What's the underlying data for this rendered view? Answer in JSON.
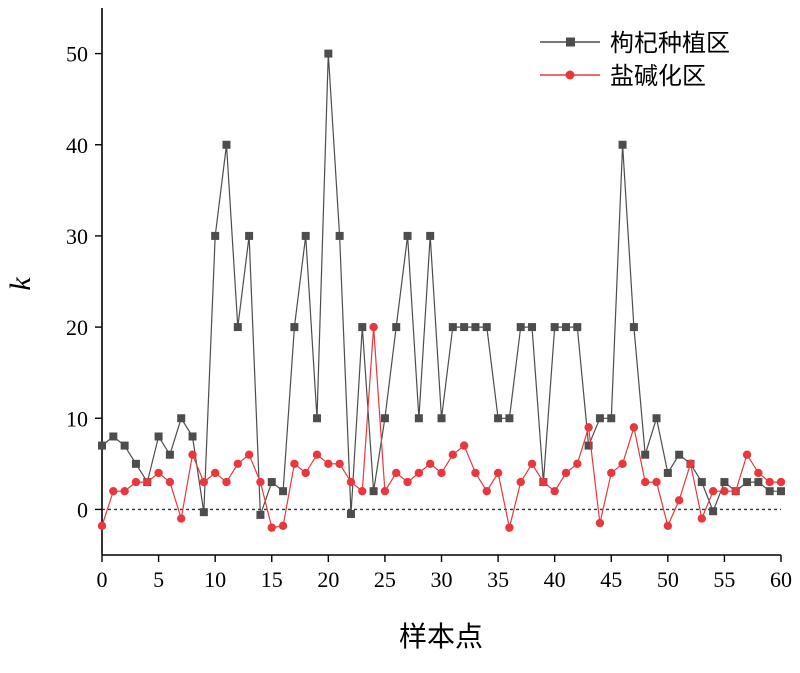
{
  "chart_data": {
    "type": "line",
    "title": "",
    "xlabel": "样本点",
    "ylabel": "k",
    "xlim": [
      0,
      60
    ],
    "ylim": [
      -5,
      55
    ],
    "xticks": [
      0,
      5,
      10,
      15,
      20,
      25,
      30,
      35,
      40,
      45,
      50,
      55,
      60
    ],
    "yticks": [
      0,
      10,
      20,
      30,
      40,
      50
    ],
    "reference_line": {
      "y": 0,
      "style": "dotted"
    },
    "legend_position": "top-right",
    "series": [
      {
        "name": "枸杞种植区",
        "color": "#4d4d4d",
        "marker": "square",
        "x": [
          0,
          1,
          2,
          3,
          4,
          5,
          6,
          7,
          8,
          9,
          10,
          11,
          12,
          13,
          14,
          15,
          16,
          17,
          18,
          19,
          20,
          21,
          22,
          23,
          24,
          25,
          26,
          27,
          28,
          29,
          30,
          31,
          32,
          33,
          34,
          35,
          36,
          37,
          38,
          39,
          40,
          41,
          42,
          43,
          44,
          45,
          46,
          47,
          48,
          49,
          50,
          51,
          52,
          53,
          54,
          55,
          56,
          57,
          58,
          59,
          60
        ],
        "y": [
          7,
          8,
          7,
          5,
          3,
          8,
          6,
          10,
          8,
          -0.3,
          30,
          40,
          20,
          30,
          -0.6,
          3,
          2,
          20,
          30,
          10,
          50,
          30,
          -0.5,
          20,
          2,
          10,
          20,
          30,
          10,
          30,
          10,
          20,
          20,
          20,
          20,
          10,
          10,
          20,
          20,
          3,
          20,
          20,
          20,
          7,
          10,
          10,
          40,
          20,
          6,
          10,
          4,
          6,
          5,
          3,
          -0.2,
          3,
          2,
          3,
          3,
          2,
          2
        ]
      },
      {
        "name": "盐碱化区",
        "color": "#e8383d",
        "marker": "circle",
        "x": [
          0,
          1,
          2,
          3,
          4,
          5,
          6,
          7,
          8,
          9,
          10,
          11,
          12,
          13,
          14,
          15,
          16,
          17,
          18,
          19,
          20,
          21,
          22,
          23,
          24,
          25,
          26,
          27,
          28,
          29,
          30,
          31,
          32,
          33,
          34,
          35,
          36,
          37,
          38,
          39,
          40,
          41,
          42,
          43,
          44,
          45,
          46,
          47,
          48,
          49,
          50,
          51,
          52,
          53,
          54,
          55,
          56,
          57,
          58,
          59,
          60
        ],
        "y": [
          -1.8,
          2,
          2,
          3,
          3,
          4,
          3,
          -1,
          6,
          3,
          4,
          3,
          5,
          6,
          3,
          -2,
          -1.8,
          5,
          4,
          6,
          5,
          5,
          3,
          2,
          20,
          2,
          4,
          3,
          4,
          5,
          4,
          6,
          7,
          4,
          2,
          4,
          -2,
          3,
          5,
          3,
          2,
          4,
          5,
          9,
          -1.5,
          4,
          5,
          9,
          3,
          3,
          -1.8,
          1,
          5,
          -1,
          2,
          2,
          2,
          6,
          4,
          3,
          3
        ]
      }
    ]
  }
}
